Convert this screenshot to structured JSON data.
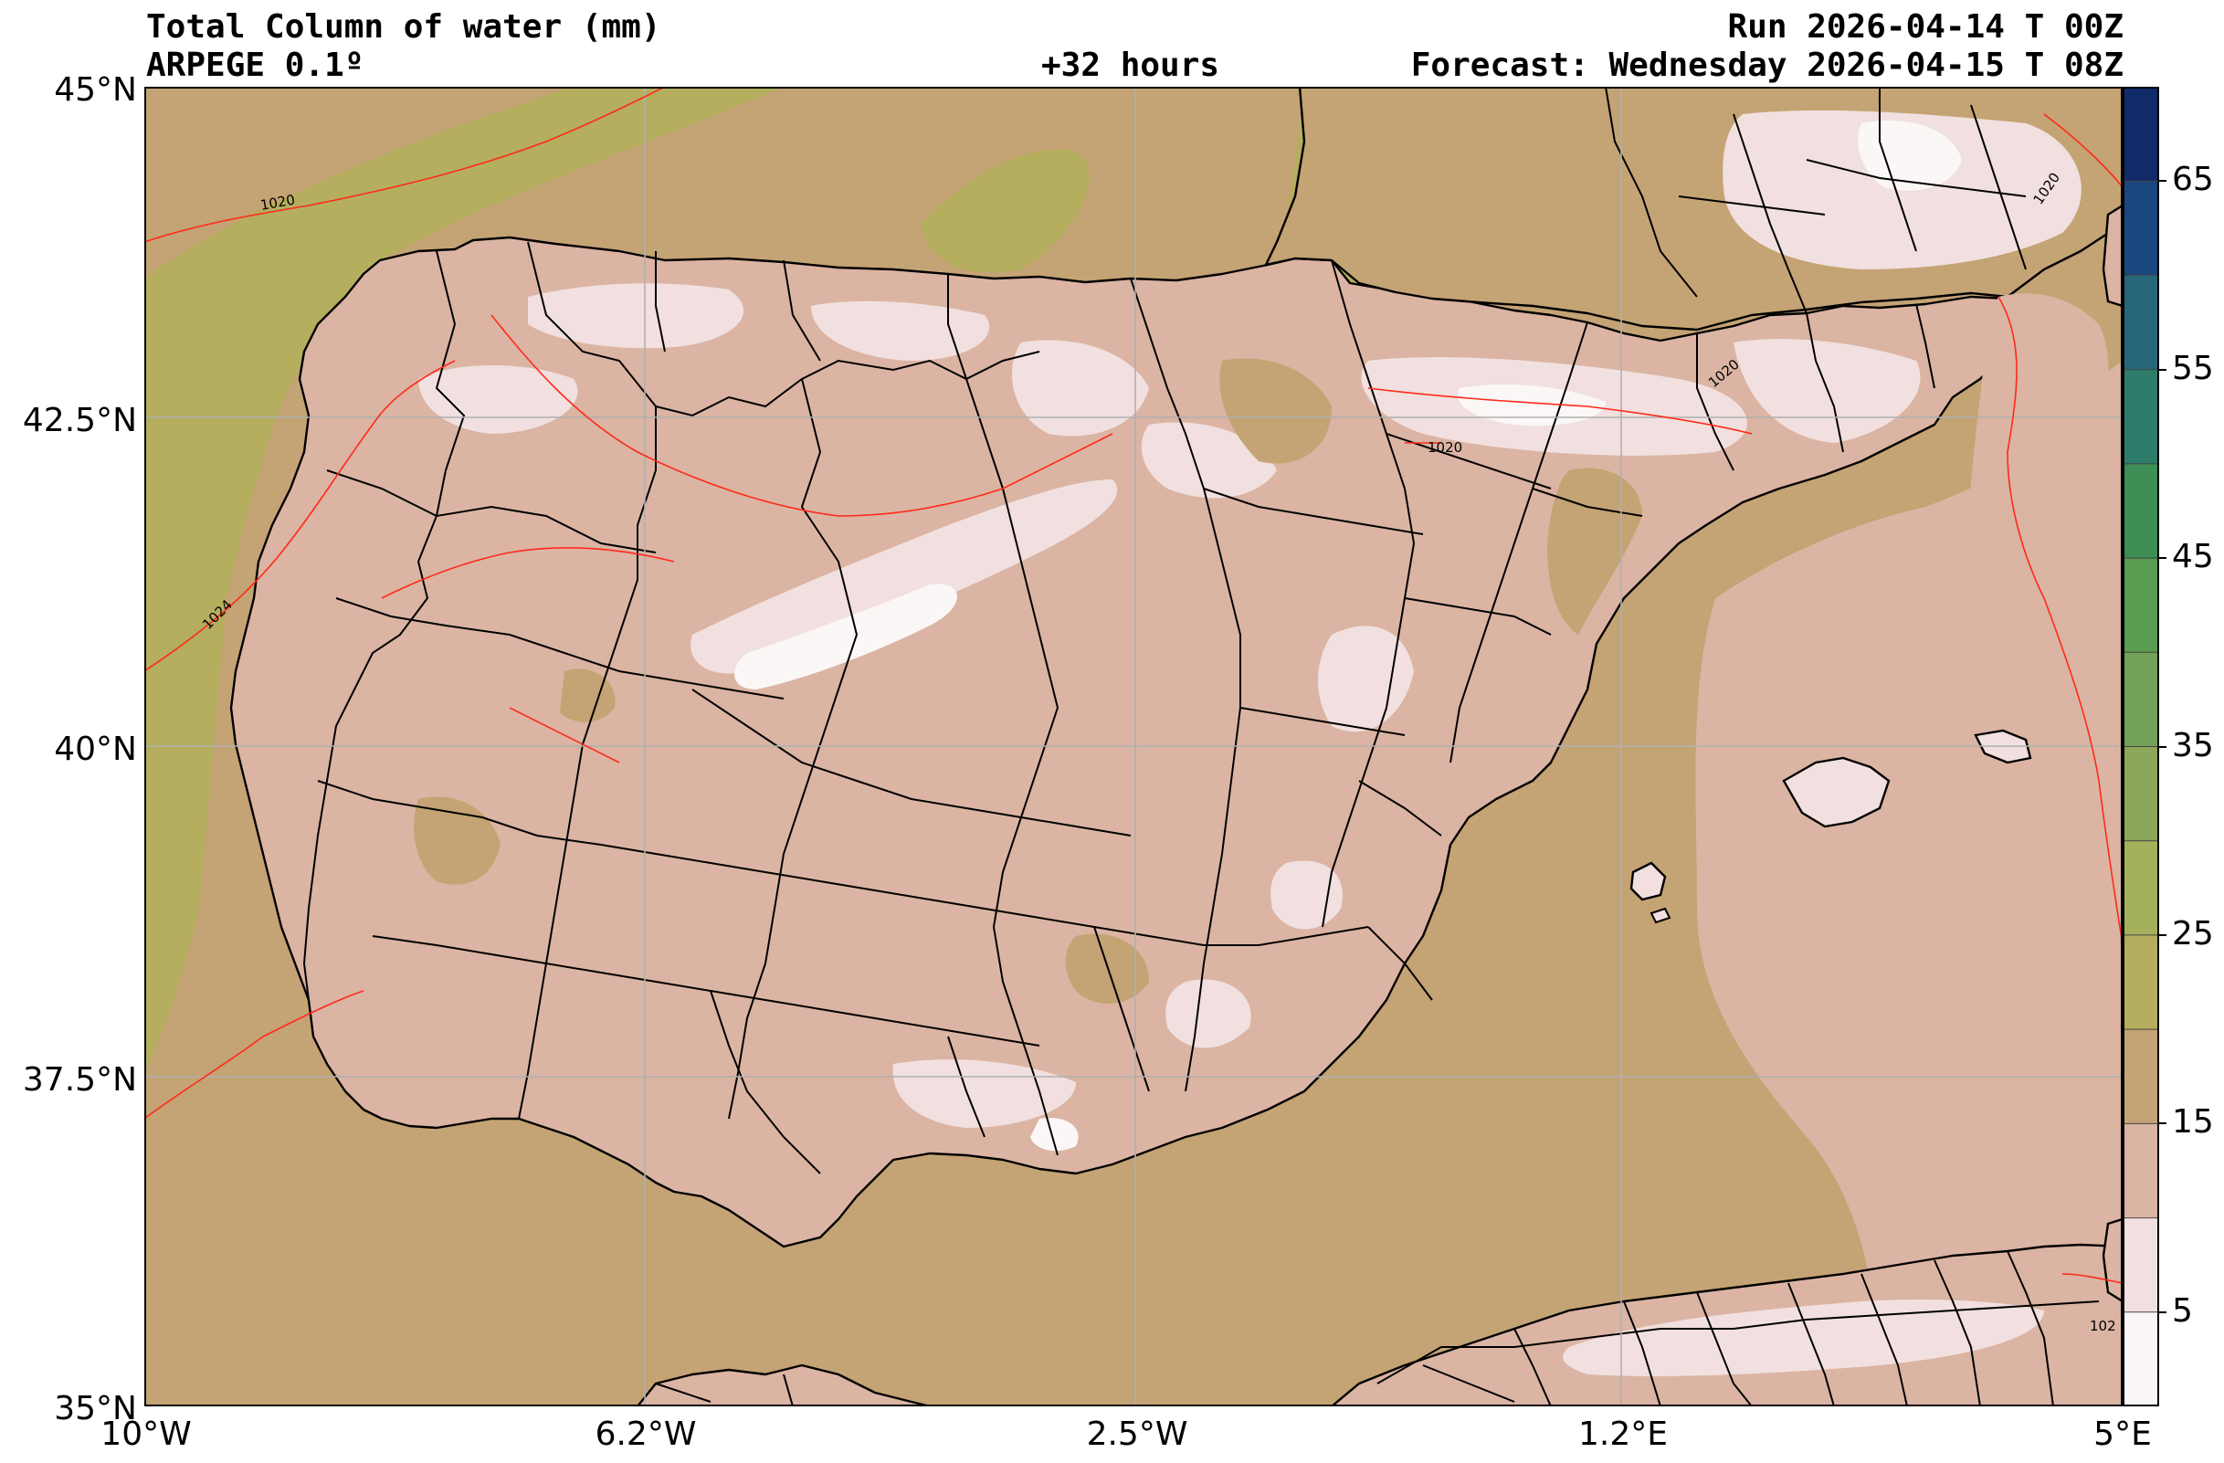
{
  "header": {
    "title": "Total Column of water (mm)",
    "model": "ARPEGE 0.1º",
    "lead": "+32 hours",
    "run": "Run 2026-04-14 T 00Z",
    "forecast": "Forecast: Wednesday 2026-04-15 T 08Z"
  },
  "axes": {
    "lat_labels": [
      "45°N",
      "42.5°N",
      "40°N",
      "37.5°N",
      "35°N"
    ],
    "lon_labels": [
      "10°W",
      "6.2°W",
      "2.5°W",
      "1.2°E",
      "5°E"
    ]
  },
  "colorbar": {
    "tick_labels": [
      "5",
      "15",
      "25",
      "35",
      "45",
      "55",
      "65"
    ],
    "levels": [
      0,
      5,
      10,
      15,
      20,
      25,
      30,
      35,
      40,
      45,
      50,
      55,
      60,
      65,
      70
    ],
    "colors": [
      "#fbf7f7",
      "#f1e0df",
      "#dbb4a3",
      "#c4a374",
      "#b4ae5e",
      "#a4b05a",
      "#8ca65a",
      "#74a158",
      "#5a9c51",
      "#3d8f56",
      "#2e7d6a",
      "#26687a",
      "#1a477e",
      "#102a6a",
      "#000000"
    ]
  },
  "isobars": [
    "1020",
    "1024",
    "1020",
    "1020",
    "1020",
    "102"
  ],
  "colors": {
    "sea_high": "#b4ae5e",
    "sea_mid": "#c4a374",
    "land_low": "#dbb4a3",
    "land_lowest": "#f1e0df",
    "isobar": "#ff2a1a",
    "border": "#000000",
    "grid": "#b0b0b0"
  }
}
